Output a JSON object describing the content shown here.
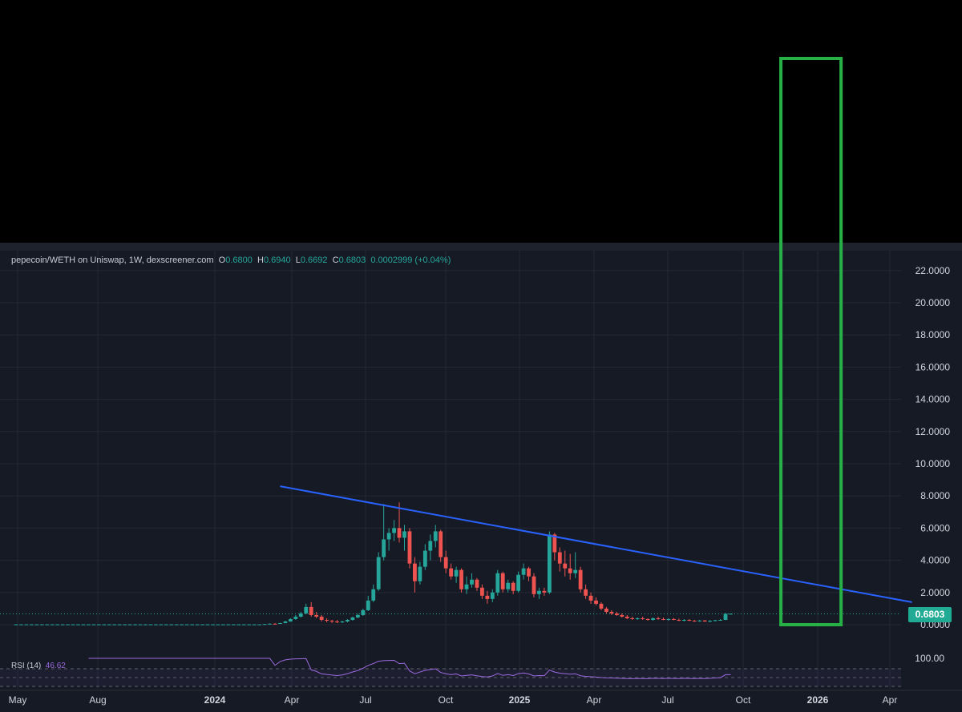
{
  "header": {
    "symbol": "pepecoin/WETH on Uniswap, 1W, dexscreener.com",
    "o_label": "O",
    "o_value": "0.6800",
    "h_label": "H",
    "h_value": "0.6940",
    "l_label": "L",
    "l_value": "0.6692",
    "c_label": "C",
    "c_value": "0.6803",
    "change": "0.0002999 (+0.04%)"
  },
  "price_tag": "0.6803",
  "rsi": {
    "label": "RSI (14)",
    "value": "46.62",
    "axis_label": "100.00"
  },
  "colors": {
    "background": "#161a25",
    "up": "#26a69a",
    "down": "#ef5350",
    "trendline": "#2962ff",
    "box": "#27b045",
    "rsi": "#9c6ade",
    "price_line": "#22ab94"
  },
  "chart_data": {
    "type": "candlestick",
    "interval": "1W",
    "y_axis_ticks": [
      "22.0000",
      "20.0000",
      "18.0000",
      "16.0000",
      "14.0000",
      "12.0000",
      "10.0000",
      "8.0000",
      "6.0000",
      "4.0000",
      "2.0000",
      "0.0000"
    ],
    "ylim": [
      0,
      22
    ],
    "x_axis_ticks": [
      "May",
      "Aug",
      "2024",
      "Apr",
      "Jul",
      "Oct",
      "2025",
      "Apr",
      "Jul",
      "Oct",
      "2026",
      "Apr"
    ],
    "last_price": 0.6803,
    "candles": [
      {
        "o": 0.02,
        "h": 0.03,
        "l": 0.01,
        "c": 0.02
      },
      {
        "o": 0.02,
        "h": 0.03,
        "l": 0.01,
        "c": 0.02
      },
      {
        "o": 0.02,
        "h": 0.03,
        "l": 0.01,
        "c": 0.02
      },
      {
        "o": 0.02,
        "h": 0.03,
        "l": 0.01,
        "c": 0.02
      },
      {
        "o": 0.02,
        "h": 0.03,
        "l": 0.01,
        "c": 0.02
      },
      {
        "o": 0.02,
        "h": 0.03,
        "l": 0.01,
        "c": 0.02
      },
      {
        "o": 0.02,
        "h": 0.03,
        "l": 0.01,
        "c": 0.02
      },
      {
        "o": 0.02,
        "h": 0.03,
        "l": 0.01,
        "c": 0.02
      },
      {
        "o": 0.02,
        "h": 0.03,
        "l": 0.01,
        "c": 0.02
      },
      {
        "o": 0.02,
        "h": 0.03,
        "l": 0.01,
        "c": 0.02
      },
      {
        "o": 0.02,
        "h": 0.03,
        "l": 0.01,
        "c": 0.02
      },
      {
        "o": 0.02,
        "h": 0.03,
        "l": 0.01,
        "c": 0.02
      },
      {
        "o": 0.02,
        "h": 0.03,
        "l": 0.01,
        "c": 0.02
      },
      {
        "o": 0.02,
        "h": 0.03,
        "l": 0.01,
        "c": 0.02
      },
      {
        "o": 0.02,
        "h": 0.03,
        "l": 0.01,
        "c": 0.02
      },
      {
        "o": 0.02,
        "h": 0.03,
        "l": 0.01,
        "c": 0.02
      },
      {
        "o": 0.02,
        "h": 0.03,
        "l": 0.01,
        "c": 0.02
      },
      {
        "o": 0.02,
        "h": 0.03,
        "l": 0.01,
        "c": 0.02
      },
      {
        "o": 0.02,
        "h": 0.03,
        "l": 0.01,
        "c": 0.02
      },
      {
        "o": 0.02,
        "h": 0.03,
        "l": 0.01,
        "c": 0.02
      },
      {
        "o": 0.02,
        "h": 0.03,
        "l": 0.01,
        "c": 0.02
      },
      {
        "o": 0.02,
        "h": 0.03,
        "l": 0.01,
        "c": 0.02
      },
      {
        "o": 0.02,
        "h": 0.03,
        "l": 0.01,
        "c": 0.02
      },
      {
        "o": 0.02,
        "h": 0.03,
        "l": 0.01,
        "c": 0.02
      },
      {
        "o": 0.02,
        "h": 0.03,
        "l": 0.01,
        "c": 0.02
      },
      {
        "o": 0.02,
        "h": 0.03,
        "l": 0.01,
        "c": 0.02
      },
      {
        "o": 0.02,
        "h": 0.03,
        "l": 0.01,
        "c": 0.02
      },
      {
        "o": 0.02,
        "h": 0.03,
        "l": 0.01,
        "c": 0.02
      },
      {
        "o": 0.02,
        "h": 0.03,
        "l": 0.01,
        "c": 0.02
      },
      {
        "o": 0.02,
        "h": 0.03,
        "l": 0.01,
        "c": 0.02
      },
      {
        "o": 0.02,
        "h": 0.03,
        "l": 0.01,
        "c": 0.02
      },
      {
        "o": 0.02,
        "h": 0.03,
        "l": 0.01,
        "c": 0.02
      },
      {
        "o": 0.02,
        "h": 0.03,
        "l": 0.01,
        "c": 0.02
      },
      {
        "o": 0.02,
        "h": 0.03,
        "l": 0.01,
        "c": 0.02
      },
      {
        "o": 0.02,
        "h": 0.03,
        "l": 0.01,
        "c": 0.02
      },
      {
        "o": 0.02,
        "h": 0.03,
        "l": 0.01,
        "c": 0.02
      },
      {
        "o": 0.02,
        "h": 0.03,
        "l": 0.01,
        "c": 0.02
      },
      {
        "o": 0.02,
        "h": 0.03,
        "l": 0.01,
        "c": 0.02
      },
      {
        "o": 0.02,
        "h": 0.03,
        "l": 0.01,
        "c": 0.02
      },
      {
        "o": 0.02,
        "h": 0.03,
        "l": 0.01,
        "c": 0.02
      },
      {
        "o": 0.02,
        "h": 0.03,
        "l": 0.01,
        "c": 0.02
      },
      {
        "o": 0.02,
        "h": 0.03,
        "l": 0.01,
        "c": 0.02
      },
      {
        "o": 0.02,
        "h": 0.03,
        "l": 0.01,
        "c": 0.02
      },
      {
        "o": 0.02,
        "h": 0.03,
        "l": 0.01,
        "c": 0.02
      },
      {
        "o": 0.02,
        "h": 0.03,
        "l": 0.01,
        "c": 0.02
      },
      {
        "o": 0.02,
        "h": 0.03,
        "l": 0.01,
        "c": 0.02
      },
      {
        "o": 0.02,
        "h": 0.03,
        "l": 0.01,
        "c": 0.02
      },
      {
        "o": 0.02,
        "h": 0.03,
        "l": 0.01,
        "c": 0.02
      },
      {
        "o": 0.02,
        "h": 0.05,
        "l": 0.01,
        "c": 0.04
      },
      {
        "o": 0.04,
        "h": 0.08,
        "l": 0.03,
        "c": 0.06
      },
      {
        "o": 0.06,
        "h": 0.1,
        "l": 0.05,
        "c": 0.05
      },
      {
        "o": 0.05,
        "h": 0.12,
        "l": 0.05,
        "c": 0.1
      },
      {
        "o": 0.1,
        "h": 0.25,
        "l": 0.09,
        "c": 0.2
      },
      {
        "o": 0.2,
        "h": 0.4,
        "l": 0.18,
        "c": 0.35
      },
      {
        "o": 0.35,
        "h": 0.6,
        "l": 0.3,
        "c": 0.5
      },
      {
        "o": 0.5,
        "h": 0.8,
        "l": 0.45,
        "c": 0.7
      },
      {
        "o": 0.7,
        "h": 1.3,
        "l": 0.65,
        "c": 1.1
      },
      {
        "o": 1.1,
        "h": 1.4,
        "l": 0.5,
        "c": 0.6
      },
      {
        "o": 0.6,
        "h": 0.8,
        "l": 0.4,
        "c": 0.5
      },
      {
        "o": 0.5,
        "h": 0.6,
        "l": 0.2,
        "c": 0.3
      },
      {
        "o": 0.3,
        "h": 0.4,
        "l": 0.15,
        "c": 0.25
      },
      {
        "o": 0.25,
        "h": 0.3,
        "l": 0.1,
        "c": 0.2
      },
      {
        "o": 0.2,
        "h": 0.3,
        "l": 0.1,
        "c": 0.15
      },
      {
        "o": 0.15,
        "h": 0.25,
        "l": 0.1,
        "c": 0.2
      },
      {
        "o": 0.2,
        "h": 0.35,
        "l": 0.15,
        "c": 0.3
      },
      {
        "o": 0.3,
        "h": 0.5,
        "l": 0.25,
        "c": 0.45
      },
      {
        "o": 0.45,
        "h": 0.7,
        "l": 0.4,
        "c": 0.6
      },
      {
        "o": 0.6,
        "h": 1.0,
        "l": 0.55,
        "c": 0.9
      },
      {
        "o": 0.9,
        "h": 1.8,
        "l": 0.85,
        "c": 1.5
      },
      {
        "o": 1.5,
        "h": 2.5,
        "l": 1.4,
        "c": 2.2
      },
      {
        "o": 2.2,
        "h": 4.5,
        "l": 2.1,
        "c": 4.2
      },
      {
        "o": 4.2,
        "h": 7.5,
        "l": 4.0,
        "c": 5.3
      },
      {
        "o": 5.3,
        "h": 6.0,
        "l": 4.6,
        "c": 5.7
      },
      {
        "o": 5.7,
        "h": 6.5,
        "l": 5.2,
        "c": 6.0
      },
      {
        "o": 6.0,
        "h": 7.6,
        "l": 5.1,
        "c": 5.4
      },
      {
        "o": 5.4,
        "h": 6.2,
        "l": 4.6,
        "c": 5.8
      },
      {
        "o": 5.8,
        "h": 6.0,
        "l": 3.5,
        "c": 3.8
      },
      {
        "o": 3.8,
        "h": 4.2,
        "l": 2.0,
        "c": 2.7
      },
      {
        "o": 2.7,
        "h": 3.9,
        "l": 2.5,
        "c": 3.6
      },
      {
        "o": 3.6,
        "h": 5.0,
        "l": 3.4,
        "c": 4.6
      },
      {
        "o": 4.6,
        "h": 5.6,
        "l": 4.0,
        "c": 5.2
      },
      {
        "o": 5.2,
        "h": 6.2,
        "l": 4.8,
        "c": 5.8
      },
      {
        "o": 5.8,
        "h": 5.9,
        "l": 3.9,
        "c": 4.2
      },
      {
        "o": 4.2,
        "h": 4.6,
        "l": 3.2,
        "c": 3.5
      },
      {
        "o": 3.5,
        "h": 3.8,
        "l": 2.8,
        "c": 3.0
      },
      {
        "o": 3.0,
        "h": 3.6,
        "l": 2.6,
        "c": 3.4
      },
      {
        "o": 3.4,
        "h": 3.5,
        "l": 2.0,
        "c": 2.2
      },
      {
        "o": 2.2,
        "h": 3.0,
        "l": 1.9,
        "c": 2.5
      },
      {
        "o": 2.5,
        "h": 3.2,
        "l": 2.3,
        "c": 2.8
      },
      {
        "o": 2.8,
        "h": 2.9,
        "l": 2.1,
        "c": 2.3
      },
      {
        "o": 2.3,
        "h": 2.5,
        "l": 1.6,
        "c": 1.8
      },
      {
        "o": 1.8,
        "h": 2.1,
        "l": 1.3,
        "c": 1.6
      },
      {
        "o": 1.6,
        "h": 2.2,
        "l": 1.4,
        "c": 2.0
      },
      {
        "o": 2.0,
        "h": 3.4,
        "l": 1.8,
        "c": 3.2
      },
      {
        "o": 3.2,
        "h": 3.3,
        "l": 2.0,
        "c": 2.2
      },
      {
        "o": 2.2,
        "h": 2.8,
        "l": 2.0,
        "c": 2.6
      },
      {
        "o": 2.6,
        "h": 2.7,
        "l": 1.9,
        "c": 2.1
      },
      {
        "o": 2.1,
        "h": 3.3,
        "l": 2.0,
        "c": 3.1
      },
      {
        "o": 3.1,
        "h": 3.8,
        "l": 2.8,
        "c": 3.5
      },
      {
        "o": 3.5,
        "h": 3.6,
        "l": 2.7,
        "c": 3.0
      },
      {
        "o": 3.0,
        "h": 3.2,
        "l": 1.7,
        "c": 1.9
      },
      {
        "o": 1.9,
        "h": 2.3,
        "l": 1.6,
        "c": 2.1
      },
      {
        "o": 2.1,
        "h": 2.3,
        "l": 1.8,
        "c": 2.0
      },
      {
        "o": 2.0,
        "h": 5.8,
        "l": 1.9,
        "c": 5.6
      },
      {
        "o": 5.6,
        "h": 5.7,
        "l": 4.0,
        "c": 4.5
      },
      {
        "o": 4.5,
        "h": 4.8,
        "l": 3.3,
        "c": 3.8
      },
      {
        "o": 3.8,
        "h": 4.6,
        "l": 3.0,
        "c": 3.5
      },
      {
        "o": 3.5,
        "h": 4.4,
        "l": 2.8,
        "c": 3.2
      },
      {
        "o": 3.2,
        "h": 4.5,
        "l": 2.9,
        "c": 3.4
      },
      {
        "o": 3.4,
        "h": 3.6,
        "l": 2.0,
        "c": 2.2
      },
      {
        "o": 2.2,
        "h": 2.5,
        "l": 1.6,
        "c": 1.8
      },
      {
        "o": 1.8,
        "h": 2.0,
        "l": 1.3,
        "c": 1.5
      },
      {
        "o": 1.5,
        "h": 1.7,
        "l": 1.2,
        "c": 1.3
      },
      {
        "o": 1.3,
        "h": 1.4,
        "l": 0.9,
        "c": 1.0
      },
      {
        "o": 1.0,
        "h": 1.1,
        "l": 0.7,
        "c": 0.8
      },
      {
        "o": 0.8,
        "h": 0.9,
        "l": 0.6,
        "c": 0.7
      },
      {
        "o": 0.7,
        "h": 0.8,
        "l": 0.55,
        "c": 0.6
      },
      {
        "o": 0.6,
        "h": 0.7,
        "l": 0.45,
        "c": 0.5
      },
      {
        "o": 0.5,
        "h": 0.6,
        "l": 0.35,
        "c": 0.4
      },
      {
        "o": 0.4,
        "h": 0.5,
        "l": 0.3,
        "c": 0.35
      },
      {
        "o": 0.35,
        "h": 0.45,
        "l": 0.3,
        "c": 0.4
      },
      {
        "o": 0.4,
        "h": 0.5,
        "l": 0.3,
        "c": 0.35
      },
      {
        "o": 0.35,
        "h": 0.4,
        "l": 0.25,
        "c": 0.3
      },
      {
        "o": 0.3,
        "h": 0.45,
        "l": 0.25,
        "c": 0.4
      },
      {
        "o": 0.4,
        "h": 0.5,
        "l": 0.3,
        "c": 0.35
      },
      {
        "o": 0.35,
        "h": 0.45,
        "l": 0.28,
        "c": 0.3
      },
      {
        "o": 0.3,
        "h": 0.4,
        "l": 0.25,
        "c": 0.35
      },
      {
        "o": 0.35,
        "h": 0.42,
        "l": 0.28,
        "c": 0.3
      },
      {
        "o": 0.3,
        "h": 0.38,
        "l": 0.22,
        "c": 0.25
      },
      {
        "o": 0.25,
        "h": 0.35,
        "l": 0.2,
        "c": 0.3
      },
      {
        "o": 0.3,
        "h": 0.34,
        "l": 0.22,
        "c": 0.25
      },
      {
        "o": 0.25,
        "h": 0.3,
        "l": 0.18,
        "c": 0.22
      },
      {
        "o": 0.22,
        "h": 0.3,
        "l": 0.18,
        "c": 0.26
      },
      {
        "o": 0.26,
        "h": 0.3,
        "l": 0.18,
        "c": 0.2
      },
      {
        "o": 0.2,
        "h": 0.28,
        "l": 0.15,
        "c": 0.24
      },
      {
        "o": 0.24,
        "h": 0.3,
        "l": 0.2,
        "c": 0.28
      },
      {
        "o": 0.28,
        "h": 0.35,
        "l": 0.25,
        "c": 0.3
      },
      {
        "o": 0.3,
        "h": 0.72,
        "l": 0.28,
        "c": 0.68
      },
      {
        "o": 0.68,
        "h": 0.694,
        "l": 0.6692,
        "c": 0.6803
      }
    ],
    "trendline": {
      "x_start_index": 51,
      "y_start": 8.6,
      "x_end_index": 173,
      "y_end": 1.4
    },
    "highlight_box": {
      "x_start_index": 148,
      "x_end_index": 159,
      "y_bottom": 0.0
    }
  }
}
